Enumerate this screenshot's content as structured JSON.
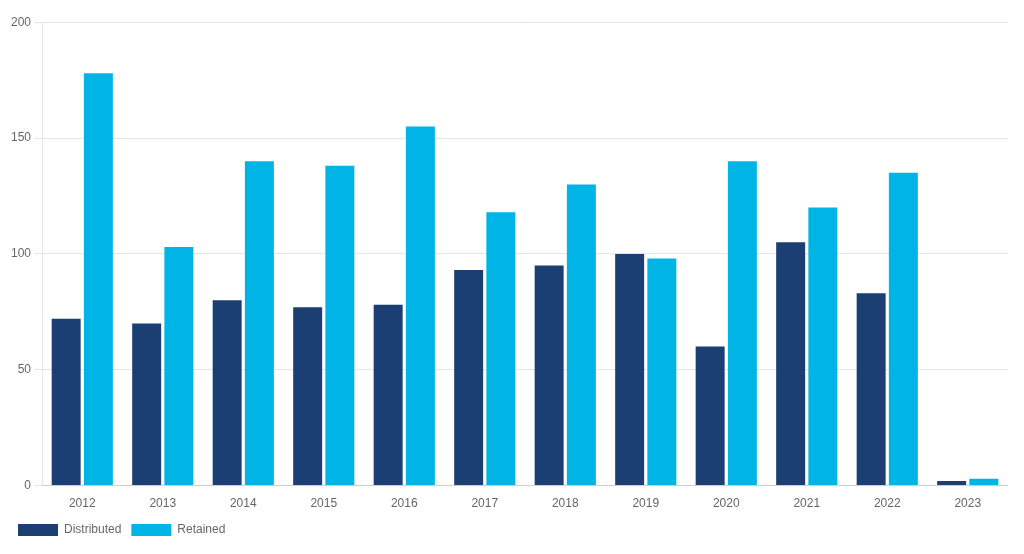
{
  "chart_data": {
    "type": "bar",
    "categories": [
      "2012",
      "2013",
      "2014",
      "2015",
      "2016",
      "2017",
      "2018",
      "2019",
      "2020",
      "2021",
      "2022",
      "2023"
    ],
    "series": [
      {
        "name": "Distributed",
        "color": "#1b3f72",
        "values": [
          72,
          70,
          80,
          77,
          78,
          93,
          95,
          100,
          60,
          105,
          83,
          2
        ]
      },
      {
        "name": "Retained",
        "color": "#00b4e6",
        "values": [
          178,
          103,
          140,
          138,
          155,
          118,
          130,
          98,
          140,
          120,
          135,
          3
        ]
      }
    ],
    "ylim": [
      0,
      200
    ],
    "yticks": [
      0,
      50,
      100,
      150,
      200
    ],
    "grid": true,
    "legend": "lower left"
  }
}
